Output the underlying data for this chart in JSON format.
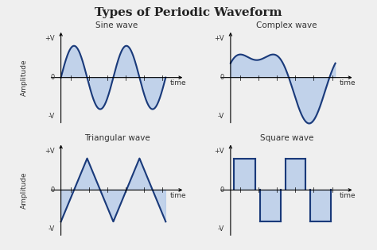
{
  "title": "Types of Periodic Waveform",
  "title_fontsize": 11,
  "title_font": "DejaVu Serif",
  "background_color": "#efefef",
  "wave_color": "#1a3a7a",
  "fill_color": "#aec6e8",
  "fill_alpha": 0.7,
  "subplot_titles": [
    "Sine wave",
    "Complex wave",
    "Triangular wave",
    "Square wave"
  ],
  "subplot_title_fontsize": 7.5,
  "axis_label_fontsize": 6.5,
  "tick_label_fontsize": 6,
  "line_width": 1.5
}
